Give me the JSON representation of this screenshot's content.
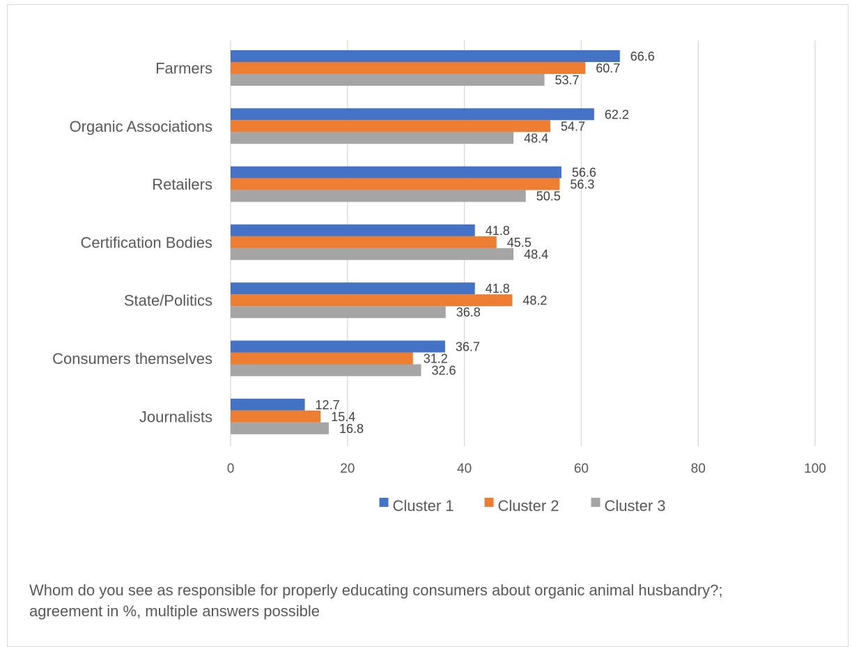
{
  "chart_data": {
    "type": "bar",
    "orientation": "horizontal",
    "categories": [
      "Farmers",
      "Organic Associations",
      "Retailers",
      "Certification Bodies",
      "State/Politics",
      "Consumers themselves",
      "Journalists"
    ],
    "series": [
      {
        "name": "Cluster 1",
        "color": "#4472c4",
        "values": [
          66.6,
          62.2,
          56.6,
          41.8,
          41.8,
          36.7,
          12.7
        ]
      },
      {
        "name": "Cluster 2",
        "color": "#ed7d31",
        "values": [
          60.7,
          54.7,
          56.3,
          45.5,
          48.2,
          31.2,
          15.4
        ]
      },
      {
        "name": "Cluster 3",
        "color": "#a5a5a5",
        "values": [
          53.7,
          48.4,
          50.5,
          48.4,
          36.8,
          32.6,
          16.8
        ]
      }
    ],
    "xlim": [
      0,
      100
    ],
    "xticks": [
      0,
      20,
      40,
      60,
      80,
      100
    ],
    "grid": true,
    "legend": "bottom"
  },
  "caption": "Whom do you see as responsible for properly educating consumers about organic animal husbandry?; agreement in %, multiple answers possible"
}
